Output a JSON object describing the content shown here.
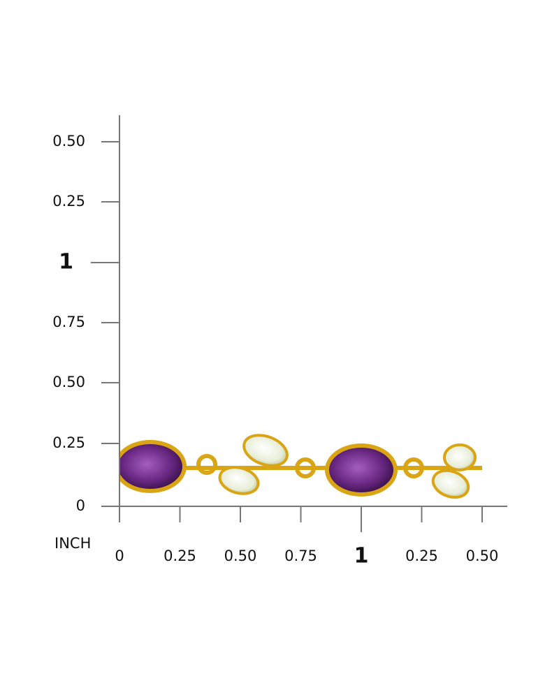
{
  "ruler": {
    "unit": "INCH",
    "y_labels": [
      "0.50",
      "0.25",
      "1",
      "0.75",
      "0.50",
      "0.25",
      "0"
    ],
    "x_labels": [
      "0",
      "0.25",
      "0.50",
      "0.75",
      "1",
      "0.25",
      "0.50"
    ]
  }
}
